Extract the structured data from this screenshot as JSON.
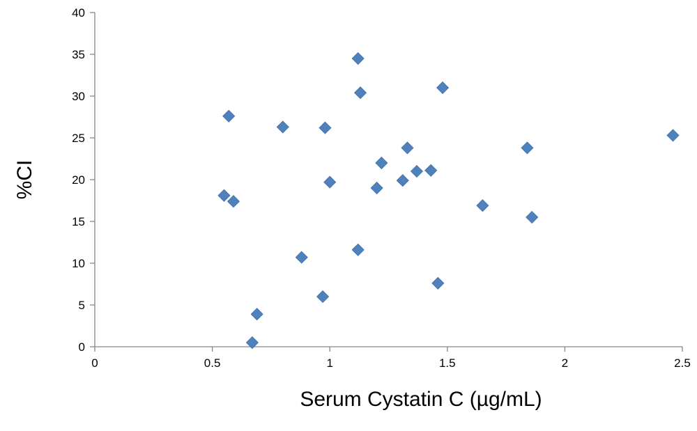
{
  "chart_data": {
    "type": "scatter",
    "xlabel": "Serum Cystatin C (µg/mL)",
    "ylabel": "%CI",
    "xlim": [
      0,
      2.5
    ],
    "ylim": [
      0,
      40
    ],
    "x_ticks": [
      "0",
      "0.5",
      "1",
      "1.5",
      "2",
      "2.5"
    ],
    "y_ticks": [
      "0",
      "5",
      "10",
      "15",
      "20",
      "25",
      "30",
      "35",
      "40"
    ],
    "grid": false,
    "legend": "none",
    "marker": "diamond",
    "color": "#4f81bd",
    "points": [
      {
        "x": 0.55,
        "y": 18.1
      },
      {
        "x": 0.57,
        "y": 27.6
      },
      {
        "x": 0.59,
        "y": 17.4
      },
      {
        "x": 0.67,
        "y": 0.5
      },
      {
        "x": 0.69,
        "y": 3.9
      },
      {
        "x": 0.8,
        "y": 26.3
      },
      {
        "x": 0.88,
        "y": 10.7
      },
      {
        "x": 0.97,
        "y": 6.0
      },
      {
        "x": 0.98,
        "y": 26.2
      },
      {
        "x": 1.0,
        "y": 19.7
      },
      {
        "x": 1.12,
        "y": 34.5
      },
      {
        "x": 1.12,
        "y": 11.6
      },
      {
        "x": 1.13,
        "y": 30.4
      },
      {
        "x": 1.2,
        "y": 19.0
      },
      {
        "x": 1.22,
        "y": 22.0
      },
      {
        "x": 1.31,
        "y": 19.9
      },
      {
        "x": 1.33,
        "y": 23.8
      },
      {
        "x": 1.37,
        "y": 21.0
      },
      {
        "x": 1.43,
        "y": 21.1
      },
      {
        "x": 1.46,
        "y": 7.6
      },
      {
        "x": 1.48,
        "y": 31.0
      },
      {
        "x": 1.65,
        "y": 16.9
      },
      {
        "x": 1.84,
        "y": 23.8
      },
      {
        "x": 1.86,
        "y": 15.5
      },
      {
        "x": 2.46,
        "y": 25.3
      }
    ]
  }
}
